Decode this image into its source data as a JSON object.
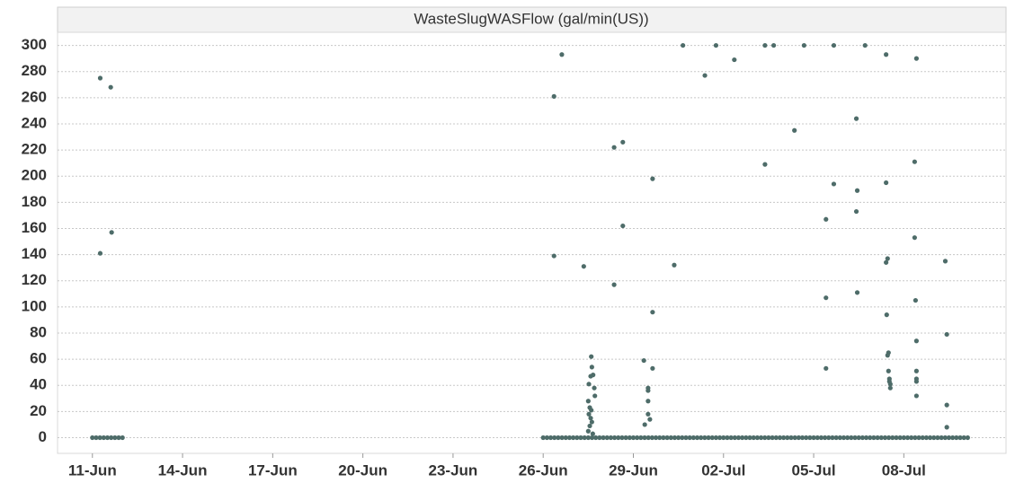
{
  "chart_data": {
    "type": "scatter",
    "title": "WasteSlugWASFlow (gal/min(US))",
    "color": "#4e6c69",
    "grid": true,
    "xlim": [
      -1.16,
      30.4
    ],
    "ylim": [
      -12,
      310
    ],
    "xticks": [
      {
        "value": 0,
        "label": "11-Jun"
      },
      {
        "value": 3,
        "label": "14-Jun"
      },
      {
        "value": 6,
        "label": "17-Jun"
      },
      {
        "value": 9,
        "label": "20-Jun"
      },
      {
        "value": 12,
        "label": "23-Jun"
      },
      {
        "value": 15,
        "label": "26-Jun"
      },
      {
        "value": 18,
        "label": "29-Jun"
      },
      {
        "value": 21,
        "label": "02-Jul"
      },
      {
        "value": 24,
        "label": "05-Jul"
      },
      {
        "value": 27,
        "label": "08-Jul"
      }
    ],
    "yticks": [
      0,
      20,
      40,
      60,
      80,
      100,
      120,
      140,
      160,
      180,
      200,
      220,
      240,
      260,
      280,
      300
    ],
    "x": [
      0,
      0.125,
      0.25,
      0.375,
      0.5,
      0.625,
      0.75,
      0.875,
      1,
      15,
      15.125,
      15.25,
      15.375,
      15.5,
      15.625,
      15.75,
      15.875,
      16,
      16.125,
      16.25,
      16.375,
      16.5,
      16.625,
      16.75,
      16.875,
      17,
      17.125,
      17.25,
      17.375,
      17.5,
      17.625,
      17.75,
      17.875,
      18,
      18.125,
      18.25,
      18.375,
      18.5,
      18.625,
      18.75,
      18.875,
      19,
      19.125,
      19.25,
      19.375,
      19.5,
      19.625,
      19.75,
      19.875,
      20,
      20.125,
      20.25,
      20.375,
      20.5,
      20.625,
      20.75,
      20.875,
      21,
      21.125,
      21.25,
      21.375,
      21.5,
      21.625,
      21.75,
      21.875,
      22,
      22.125,
      22.25,
      22.375,
      22.5,
      22.625,
      22.75,
      22.875,
      23,
      23.125,
      23.25,
      23.375,
      23.5,
      23.625,
      23.75,
      23.875,
      24,
      24.125,
      24.25,
      24.375,
      24.5,
      24.625,
      24.75,
      24.875,
      25,
      25.125,
      25.25,
      25.375,
      25.5,
      25.625,
      25.75,
      25.875,
      26,
      26.125,
      26.25,
      26.375,
      26.5,
      26.625,
      26.75,
      26.875,
      27,
      27.125,
      27.25,
      27.375,
      27.5,
      27.625,
      27.75,
      27.875,
      28,
      28.125,
      28.25,
      28.375,
      28.5,
      28.625,
      28.75,
      28.875,
      29,
      29.125,
      0.26,
      0.61,
      0.26,
      0.64,
      15.36,
      15.62,
      15.36,
      16.35,
      16.6,
      16.62,
      16.66,
      16.58,
      16.52,
      16.7,
      16.72,
      16.5,
      16.55,
      16.6,
      16.52,
      16.58,
      16.62,
      16.55,
      16.5,
      16.65,
      17.36,
      17.36,
      17.65,
      17.65,
      18.64,
      18.64,
      18.35,
      18.64,
      18.49,
      18.49,
      18.49,
      18.49,
      18.55,
      18.38,
      19.36,
      19.65,
      20.38,
      20.75,
      21.36,
      22.38,
      22.38,
      22.67,
      23.36,
      23.68,
      24.41,
      24.41,
      24.41,
      24.67,
      24.67,
      25.42,
      25.45,
      25.42,
      25.45,
      25.71,
      26.41,
      26.41,
      26.46,
      26.41,
      26.43,
      26.49,
      26.46,
      26.49,
      26.52,
      26.52,
      26.55,
      26.55,
      27.42,
      27.36,
      27.36,
      27.39,
      27.42,
      27.42,
      27.42,
      27.42,
      27.42,
      28.38,
      28.43,
      28.43,
      28.43
    ],
    "values": [
      0,
      0,
      0,
      0,
      0,
      0,
      0,
      0,
      0,
      0,
      0,
      0,
      0,
      0,
      0,
      0,
      0,
      0,
      0,
      0,
      0,
      0,
      0,
      0,
      0,
      0,
      0,
      0,
      0,
      0,
      0,
      0,
      0,
      0,
      0,
      0,
      0,
      0,
      0,
      0,
      0,
      0,
      0,
      0,
      0,
      0,
      0,
      0,
      0,
      0,
      0,
      0,
      0,
      0,
      0,
      0,
      0,
      0,
      0,
      0,
      0,
      0,
      0,
      0,
      0,
      0,
      0,
      0,
      0,
      0,
      0,
      0,
      0,
      0,
      0,
      0,
      0,
      0,
      0,
      0,
      0,
      0,
      0,
      0,
      0,
      0,
      0,
      0,
      0,
      0,
      0,
      0,
      0,
      0,
      0,
      0,
      0,
      0,
      0,
      0,
      0,
      0,
      0,
      0,
      0,
      0,
      0,
      0,
      0,
      0,
      0,
      0,
      0,
      0,
      0,
      0,
      0,
      0,
      0,
      0,
      0,
      0,
      0,
      275,
      268,
      141,
      157,
      261,
      293,
      139,
      131,
      62,
      54,
      48,
      47,
      41,
      38,
      32,
      28,
      23,
      21,
      18,
      15,
      12,
      9,
      5,
      3,
      117,
      222,
      226,
      162,
      198,
      96,
      59,
      53,
      38,
      36,
      28,
      18,
      14,
      10,
      132,
      300,
      277,
      300,
      289,
      300,
      209,
      300,
      235,
      300,
      167,
      107,
      53,
      300,
      194,
      244,
      189,
      173,
      111,
      300,
      293,
      195,
      137,
      134,
      94,
      65,
      63,
      51,
      45,
      43,
      41,
      38,
      290,
      211,
      153,
      105,
      74,
      51,
      45,
      43,
      32,
      135,
      79,
      25,
      8
    ]
  }
}
